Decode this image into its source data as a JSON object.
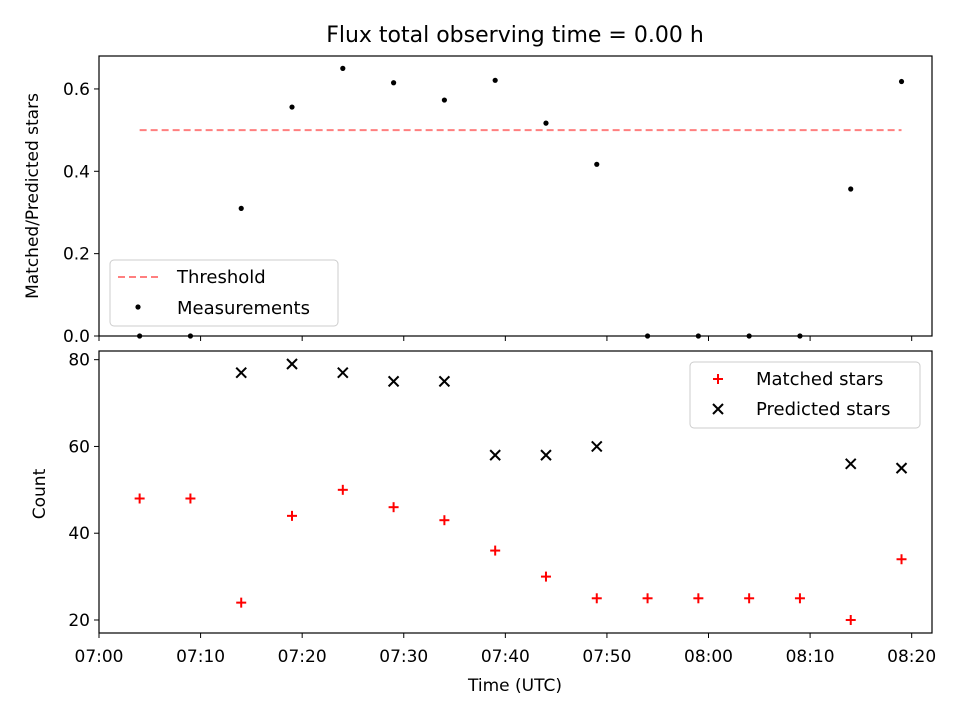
{
  "figure": {
    "title": "Flux total observing time = 0.00 h",
    "xlabel": "Time (UTC)"
  },
  "colors": {
    "threshold": "#ff7f7f",
    "measurements": "#000000",
    "matched": "#ff0000",
    "predicted": "#000000"
  },
  "chart_data": [
    {
      "type": "scatter",
      "ylabel": "Matched/Predicted stars",
      "xlim": [
        "07:00",
        "08:22"
      ],
      "ylim": [
        0,
        0.68
      ],
      "xticks": [
        "07:00",
        "07:10",
        "07:20",
        "07:30",
        "07:40",
        "07:50",
        "08:00",
        "08:10",
        "08:20"
      ],
      "yticks": [
        "0.0",
        "0.2",
        "0.4",
        "0.6"
      ],
      "legend": "lower-left",
      "threshold": {
        "name": "Threshold",
        "value": 0.5,
        "x_range": [
          "07:04",
          "08:19"
        ]
      },
      "series": [
        {
          "name": "Measurements",
          "x": [
            "07:04",
            "07:09",
            "07:14",
            "07:19",
            "07:24",
            "07:29",
            "07:34",
            "07:39",
            "07:44",
            "07:49",
            "07:54",
            "07:59",
            "08:04",
            "08:09",
            "08:14",
            "08:19"
          ],
          "values": [
            0.0,
            0.0,
            0.31,
            0.556,
            0.65,
            0.615,
            0.573,
            0.621,
            0.517,
            0.417,
            0.0,
            0.0,
            0.0,
            0.0,
            0.357,
            0.618
          ]
        }
      ]
    },
    {
      "type": "scatter",
      "ylabel": "Count",
      "xlim": [
        "07:00",
        "08:22"
      ],
      "ylim": [
        17,
        82
      ],
      "xticks": [
        "07:00",
        "07:10",
        "07:20",
        "07:30",
        "07:40",
        "07:50",
        "08:00",
        "08:10",
        "08:20"
      ],
      "yticks": [
        "20",
        "40",
        "60",
        "80"
      ],
      "legend": "upper-right",
      "series": [
        {
          "name": "Matched stars",
          "marker": "plus",
          "x": [
            "07:04",
            "07:09",
            "07:14",
            "07:19",
            "07:24",
            "07:29",
            "07:34",
            "07:39",
            "07:44",
            "07:49",
            "07:54",
            "07:59",
            "08:04",
            "08:09",
            "08:14",
            "08:19"
          ],
          "values": [
            48,
            48,
            24,
            44,
            50,
            46,
            43,
            36,
            30,
            25,
            25,
            25,
            25,
            25,
            20,
            34
          ]
        },
        {
          "name": "Predicted stars",
          "marker": "x",
          "x": [
            "07:14",
            "07:19",
            "07:24",
            "07:29",
            "07:34",
            "07:39",
            "07:44",
            "07:49",
            "08:14",
            "08:19"
          ],
          "values": [
            77,
            79,
            77,
            75,
            75,
            58,
            58,
            60,
            56,
            55
          ]
        }
      ]
    }
  ]
}
